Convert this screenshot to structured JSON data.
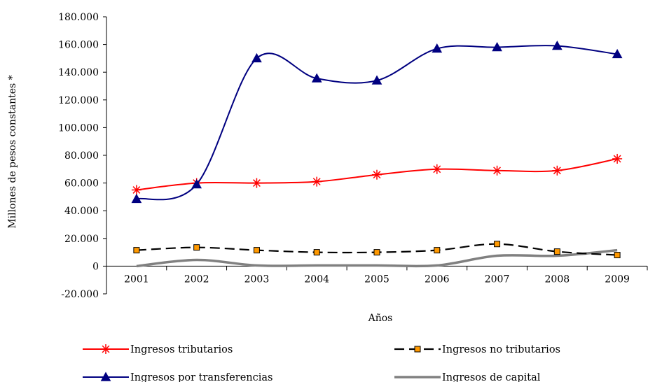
{
  "chart_data": {
    "type": "line",
    "title": "",
    "xlabel": "Años",
    "ylabel": "Millones de pesos constantes *",
    "categories": [
      "2001",
      "2002",
      "2003",
      "2004",
      "2005",
      "2006",
      "2007",
      "2008",
      "2009"
    ],
    "ylim": [
      -20000,
      180000
    ],
    "yticks": [
      -20000,
      0,
      20000,
      40000,
      60000,
      80000,
      100000,
      120000,
      140000,
      160000,
      180000
    ],
    "ytick_labels": [
      "-20.000",
      "0",
      "20.000",
      "40.000",
      "60.000",
      "80.000",
      "100.000",
      "120.000",
      "140.000",
      "160.000",
      "180.000"
    ],
    "grid": false,
    "legend_position": "bottom",
    "series": [
      {
        "name": "Ingresos tributarios",
        "color": "#ff0000",
        "marker": "asterisk",
        "dash": "solid",
        "values": [
          55000,
          60000,
          60000,
          61000,
          66000,
          70000,
          69000,
          69000,
          77500
        ]
      },
      {
        "name": "Ingresos no tributarios",
        "color": "#000000",
        "marker": "square",
        "marker_fill": "#ff9900",
        "dash": "dashed",
        "values": [
          11500,
          13500,
          11500,
          10000,
          10000,
          11500,
          16000,
          10500,
          8000
        ]
      },
      {
        "name": "Ingresos por transferencias",
        "color": "#000080",
        "marker": "triangle",
        "dash": "solid",
        "values": [
          48500,
          59000,
          150000,
          135500,
          134000,
          157000,
          158000,
          159000,
          153000
        ]
      },
      {
        "name": "Ingresos de capital",
        "color": "#808080",
        "marker": "none",
        "dash": "solid",
        "values": [
          0,
          4500,
          500,
          500,
          500,
          500,
          7500,
          7500,
          11500
        ]
      }
    ]
  }
}
